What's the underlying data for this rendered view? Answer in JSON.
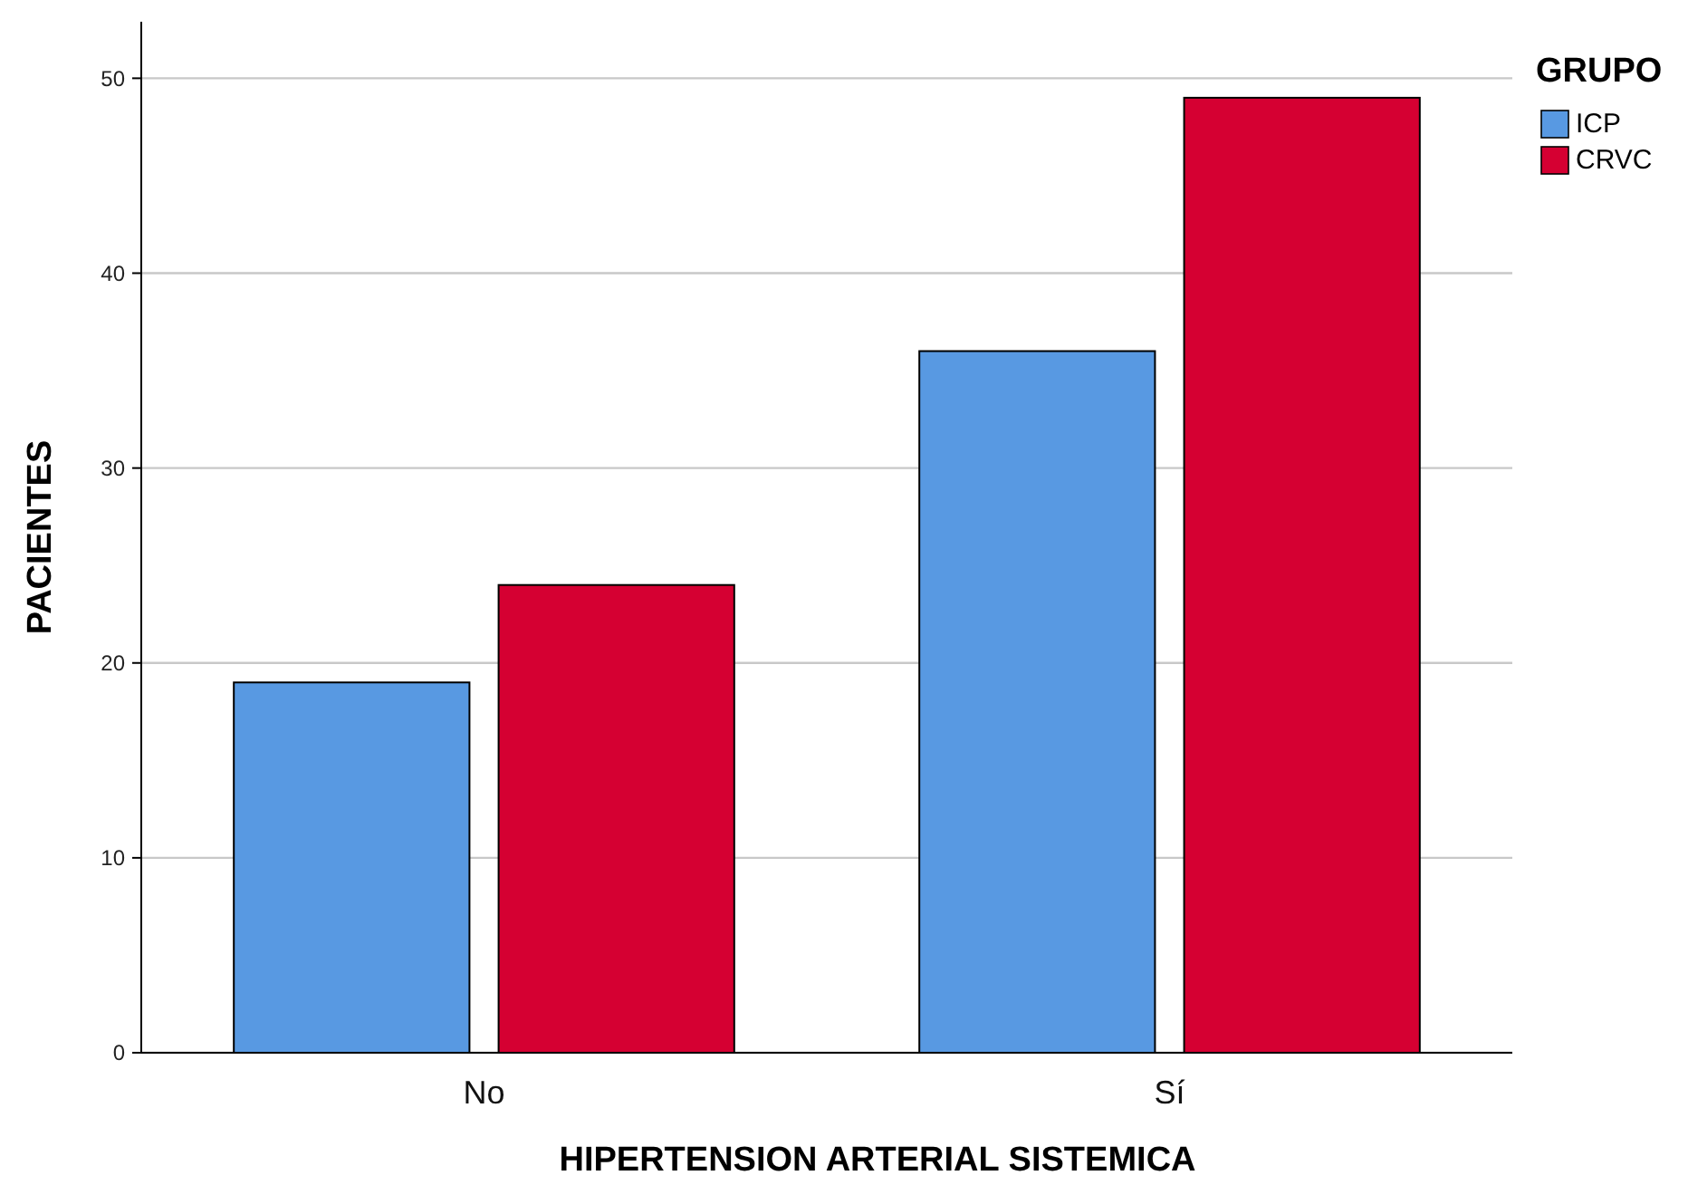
{
  "chart_data": {
    "type": "bar",
    "xlabel": "HIPERTENSION ARTERIAL SISTEMICA",
    "ylabel": "PACIENTES",
    "legend_title": "GRUPO",
    "categories": [
      "No",
      "Sí"
    ],
    "series": [
      {
        "name": "ICP",
        "color": "#5899e2",
        "values": [
          19,
          36
        ]
      },
      {
        "name": "CRVC",
        "color": "#d50032",
        "values": [
          24,
          49
        ]
      }
    ],
    "ylim": [
      0,
      52.9
    ],
    "yticks": [
      0,
      10,
      20,
      30,
      40,
      50
    ],
    "grid": "y",
    "legend": "top right"
  }
}
